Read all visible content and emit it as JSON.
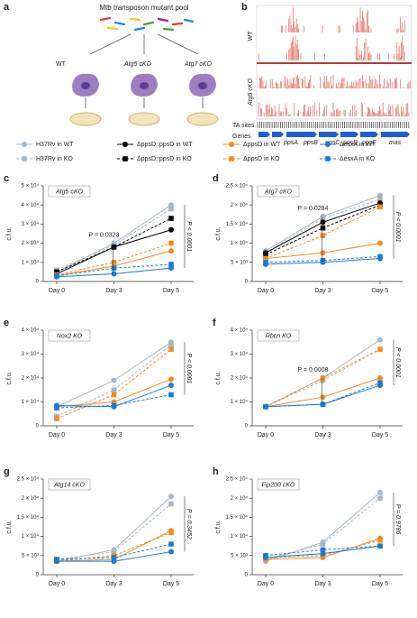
{
  "panel_a": {
    "label": "a",
    "title": "Mtb transposon mutant pool",
    "groups": [
      "WT",
      "Atg5 cKO",
      "Atg7 cKO"
    ]
  },
  "panel_b": {
    "label": "b",
    "tracks": [
      "WT",
      "Atg5 cKO"
    ],
    "rows": [
      "TA sites",
      "Genes"
    ],
    "genes": [
      "ppsA",
      "ppsB",
      "ppsC",
      "ppsD",
      "ppsE",
      "mas"
    ]
  },
  "chart_data": [
    {
      "type": "line",
      "panel_label": "c",
      "title": "Atg5 cKO",
      "ylabel": "c.f.u.",
      "categories": [
        "Day 0",
        "Day 3",
        "Day 5"
      ],
      "ylim": [
        0,
        50000
      ],
      "yticks": [
        0,
        {
          "value": 10000,
          "label": "1 × 10⁴"
        },
        {
          "value": 20000,
          "label": "2 × 10⁴"
        },
        {
          "value": 30000,
          "label": "3 × 10⁴"
        },
        {
          "value": 40000,
          "label": "4 × 10⁴"
        },
        {
          "value": 50000,
          "label": "5 × 10⁴"
        }
      ],
      "annotations": [
        {
          "text": "P = 0.0323",
          "orientation": "horizontal"
        },
        {
          "text": "P < 0.0001",
          "orientation": "vertical"
        }
      ],
      "series": [
        {
          "name": "H37Rv in WT",
          "color": "#a4b6c8",
          "marker": "circle",
          "dashed": false,
          "values": [
            5000,
            20000,
            40000
          ]
        },
        {
          "name": "H37Rv in KO",
          "color": "#a9b6c0",
          "marker": "square",
          "dashed": true,
          "values": [
            6000,
            19000,
            38000
          ]
        },
        {
          "name": "ΔppsD::ppsD in WT",
          "color": "#000000",
          "marker": "circle",
          "dashed": false,
          "values": [
            4000,
            18000,
            27000
          ]
        },
        {
          "name": "ΔppsD::ppsD in KO",
          "color": "#000000",
          "marker": "square",
          "dashed": true,
          "values": [
            5000,
            18000,
            33000
          ]
        },
        {
          "name": "ΔppsD in WT",
          "color": "#f28a1e",
          "marker": "circle",
          "dashed": false,
          "values": [
            3000,
            8000,
            16000
          ]
        },
        {
          "name": "ΔppsD in KO",
          "color": "#f28a1e",
          "marker": "square",
          "dashed": true,
          "values": [
            3500,
            10000,
            20000
          ]
        },
        {
          "name": "ΔesxA in WT",
          "color": "#1a7ad8",
          "marker": "circle",
          "dashed": false,
          "values": [
            2500,
            4000,
            7000
          ]
        },
        {
          "name": "ΔesxA in KO",
          "color": "#1a7ad8",
          "marker": "square",
          "dashed": true,
          "values": [
            3000,
            7000,
            9000
          ]
        }
      ]
    },
    {
      "type": "line",
      "panel_label": "d",
      "title": "Atg7 cKO",
      "ylabel": "c.f.u.",
      "categories": [
        "Day 0",
        "Day 3",
        "Day 5"
      ],
      "ylim": [
        0,
        25000
      ],
      "yticks": [
        0,
        {
          "value": 5000,
          "label": "5 × 10³"
        },
        {
          "value": 10000,
          "label": "1 × 10⁴"
        },
        {
          "value": 15000,
          "label": "1.5 × 10⁴"
        },
        {
          "value": 20000,
          "label": "2 × 10⁴"
        },
        {
          "value": 25000,
          "label": "2.5 × 10⁴"
        }
      ],
      "annotations": [
        {
          "text": "P = 0.0284",
          "orientation": "horizontal"
        },
        {
          "text": "P < 0.0001",
          "orientation": "vertical"
        }
      ],
      "series": [
        {
          "name": "H37Rv in WT",
          "color": "#a4b6c8",
          "marker": "circle",
          "dashed": false,
          "values": [
            8000,
            17000,
            22500
          ]
        },
        {
          "name": "H37Rv in KO",
          "color": "#a9b6c0",
          "marker": "square",
          "dashed": true,
          "values": [
            7500,
            16500,
            21500
          ]
        },
        {
          "name": "ΔppsD::ppsD in WT",
          "color": "#000000",
          "marker": "circle",
          "dashed": false,
          "values": [
            7500,
            15500,
            20500
          ]
        },
        {
          "name": "ΔppsD::ppsD in KO",
          "color": "#000000",
          "marker": "square",
          "dashed": true,
          "values": [
            7000,
            14000,
            20000
          ]
        },
        {
          "name": "ΔppsD in WT",
          "color": "#f28a1e",
          "marker": "circle",
          "dashed": false,
          "values": [
            6000,
            7500,
            10000
          ]
        },
        {
          "name": "ΔppsD in KO",
          "color": "#f28a1e",
          "marker": "square",
          "dashed": true,
          "values": [
            6000,
            12000,
            19500
          ]
        },
        {
          "name": "ΔesxA in WT",
          "color": "#1a7ad8",
          "marker": "circle",
          "dashed": false,
          "values": [
            4500,
            5000,
            6000
          ]
        },
        {
          "name": "ΔesxA in KO",
          "color": "#1a7ad8",
          "marker": "square",
          "dashed": true,
          "values": [
            5000,
            5500,
            6500
          ]
        }
      ]
    },
    {
      "type": "line",
      "panel_label": "e",
      "title": "Nox2 KO",
      "ylabel": "c.f.u.",
      "categories": [
        "Day 0",
        "Day 3",
        "Day 5"
      ],
      "ylim": [
        0,
        40000
      ],
      "yticks": [
        0,
        {
          "value": 10000,
          "label": "1 × 10⁴"
        },
        {
          "value": 20000,
          "label": "2 × 10⁴"
        },
        {
          "value": 30000,
          "label": "3 × 10⁴"
        },
        {
          "value": 40000,
          "label": "4 × 10⁴"
        }
      ],
      "annotations": [
        {
          "text": "P < 0.0001",
          "orientation": "vertical"
        }
      ],
      "series": [
        {
          "name": "H37Rv in WT",
          "color": "#a4b6c8",
          "marker": "circle",
          "dashed": false,
          "values": [
            8000,
            19000,
            35000
          ]
        },
        {
          "name": "H37Rv in KO",
          "color": "#a9b6c0",
          "marker": "square",
          "dashed": true,
          "values": [
            4000,
            15000,
            34000
          ]
        },
        {
          "name": "ΔppsD in WT",
          "color": "#f28a1e",
          "marker": "circle",
          "dashed": false,
          "values": [
            8000,
            10000,
            19500
          ]
        },
        {
          "name": "ΔppsD in KO",
          "color": "#f28a1e",
          "marker": "square",
          "dashed": true,
          "values": [
            3000,
            13000,
            32000
          ]
        },
        {
          "name": "ΔesxA in WT",
          "color": "#1a7ad8",
          "marker": "circle",
          "dashed": false,
          "values": [
            8500,
            8000,
            17000
          ]
        },
        {
          "name": "ΔesxA in KO",
          "color": "#1a7ad8",
          "marker": "square",
          "dashed": true,
          "values": [
            7500,
            8500,
            13000
          ]
        }
      ]
    },
    {
      "type": "line",
      "panel_label": "f",
      "title": "Rbcn KO",
      "ylabel": "c.f.u.",
      "categories": [
        "Day 0",
        "Day 3",
        "Day 5"
      ],
      "ylim": [
        0,
        40000
      ],
      "yticks": [
        0,
        {
          "value": 10000,
          "label": "1 × 10⁴"
        },
        {
          "value": 20000,
          "label": "2 × 10⁴"
        },
        {
          "value": 30000,
          "label": "3 × 10⁴"
        },
        {
          "value": 40000,
          "label": "4 × 10⁴"
        }
      ],
      "annotations": [
        {
          "text": "P = 0.0008",
          "orientation": "horizontal"
        },
        {
          "text": "P < 0.0001",
          "orientation": "vertical"
        }
      ],
      "series": [
        {
          "name": "H37Rv in WT",
          "color": "#a4b6c8",
          "marker": "circle",
          "dashed": false,
          "values": [
            8000,
            20000,
            36000
          ]
        },
        {
          "name": "H37Rv in KO",
          "color": "#a9b6c0",
          "marker": "square",
          "dashed": true,
          "values": [
            8000,
            19000,
            32000
          ]
        },
        {
          "name": "ΔppsD in WT",
          "color": "#f28a1e",
          "marker": "circle",
          "dashed": false,
          "values": [
            8000,
            12000,
            20000
          ]
        },
        {
          "name": "ΔppsD in KO",
          "color": "#f28a1e",
          "marker": "square",
          "dashed": true,
          "values": [
            8000,
            20000,
            32000
          ]
        },
        {
          "name": "ΔesxA in WT",
          "color": "#1a7ad8",
          "marker": "circle",
          "dashed": false,
          "values": [
            8000,
            9000,
            17000
          ]
        },
        {
          "name": "ΔesxA in KO",
          "color": "#1a7ad8",
          "marker": "square",
          "dashed": true,
          "values": [
            8000,
            9000,
            18000
          ]
        }
      ]
    },
    {
      "type": "line",
      "panel_label": "g",
      "title": "Atg14 cKO",
      "ylabel": "c.f.u.",
      "categories": [
        "Day 0",
        "Day 3",
        "Day 5"
      ],
      "ylim": [
        0,
        25000
      ],
      "yticks": [
        0,
        {
          "value": 5000,
          "label": "5 × 10³"
        },
        {
          "value": 10000,
          "label": "1 × 10⁴"
        },
        {
          "value": 15000,
          "label": "1.5 × 10⁴"
        },
        {
          "value": 20000,
          "label": "2 × 10⁴"
        },
        {
          "value": 25000,
          "label": "2.5 × 10⁴"
        }
      ],
      "annotations": [
        {
          "text": "P = 0.3452",
          "orientation": "vertical"
        }
      ],
      "series": [
        {
          "name": "H37Rv in WT",
          "color": "#a4b6c8",
          "marker": "circle",
          "dashed": false,
          "values": [
            3500,
            6500,
            20500
          ]
        },
        {
          "name": "H37Rv in KO",
          "color": "#a9b6c0",
          "marker": "square",
          "dashed": true,
          "values": [
            4000,
            6000,
            18500
          ]
        },
        {
          "name": "ΔppsD in WT",
          "color": "#f28a1e",
          "marker": "circle",
          "dashed": false,
          "values": [
            3500,
            4000,
            11500
          ]
        },
        {
          "name": "ΔppsD in KO",
          "color": "#f28a1e",
          "marker": "square",
          "dashed": true,
          "values": [
            3500,
            5000,
            11000
          ]
        },
        {
          "name": "ΔesxA in WT",
          "color": "#1a7ad8",
          "marker": "circle",
          "dashed": false,
          "values": [
            3500,
            3500,
            6000
          ]
        },
        {
          "name": "ΔesxA in KO",
          "color": "#1a7ad8",
          "marker": "square",
          "dashed": true,
          "values": [
            4000,
            4500,
            8000
          ]
        }
      ]
    },
    {
      "type": "line",
      "panel_label": "h",
      "title": "Fip200 cKO",
      "ylabel": "c.f.u.",
      "categories": [
        "Day 0",
        "Day 3",
        "Day 5"
      ],
      "ylim": [
        0,
        25000
      ],
      "yticks": [
        0,
        {
          "value": 5000,
          "label": "5 × 10³"
        },
        {
          "value": 10000,
          "label": "1 × 10⁴"
        },
        {
          "value": 15000,
          "label": "1.5 × 10⁴"
        },
        {
          "value": 20000,
          "label": "2 × 10⁴"
        },
        {
          "value": 25000,
          "label": "2.5 × 10⁴"
        }
      ],
      "annotations": [
        {
          "text": "P = 0.9786",
          "orientation": "vertical"
        }
      ],
      "series": [
        {
          "name": "H37Rv in WT",
          "color": "#a4b6c8",
          "marker": "circle",
          "dashed": false,
          "values": [
            3500,
            8500,
            21500
          ]
        },
        {
          "name": "H37Rv in KO",
          "color": "#a9b6c0",
          "marker": "square",
          "dashed": true,
          "values": [
            4000,
            8000,
            20000
          ]
        },
        {
          "name": "ΔppsD in WT",
          "color": "#f28a1e",
          "marker": "circle",
          "dashed": false,
          "values": [
            4000,
            4500,
            9500
          ]
        },
        {
          "name": "ΔppsD in KO",
          "color": "#f28a1e",
          "marker": "square",
          "dashed": true,
          "values": [
            4500,
            5000,
            9000
          ]
        },
        {
          "name": "ΔesxA in WT",
          "color": "#1a7ad8",
          "marker": "circle",
          "dashed": false,
          "values": [
            4500,
            5500,
            7500
          ]
        },
        {
          "name": "ΔesxA in KO",
          "color": "#1a7ad8",
          "marker": "square",
          "dashed": true,
          "values": [
            5000,
            6500,
            7500
          ]
        }
      ]
    }
  ]
}
